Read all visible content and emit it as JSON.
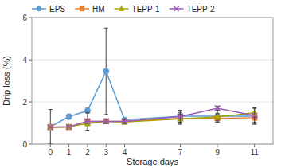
{
  "chart_data": {
    "type": "line",
    "xlabel": "Storage days",
    "ylabel": "Drip loss (%)",
    "x": [
      0,
      1,
      2,
      3,
      4,
      7,
      9,
      11
    ],
    "series": [
      {
        "name": "EPS",
        "color": "#5B9BD5",
        "marker": "circle",
        "values": [
          0.82,
          1.3,
          1.58,
          3.45,
          1.15,
          1.32,
          1.32,
          1.32
        ],
        "errors": [
          0.82,
          0.12,
          0.12,
          2.05,
          0.05,
          0.28,
          0.28,
          0.38
        ]
      },
      {
        "name": "HM",
        "color": "#ED7D31",
        "marker": "square",
        "values": [
          0.8,
          0.8,
          1.08,
          1.08,
          1.08,
          1.22,
          1.22,
          1.25
        ],
        "errors": [
          0.0,
          0.0,
          0.42,
          0.0,
          0.1,
          0.28,
          0.18,
          0.22
        ]
      },
      {
        "name": "TEPP-1",
        "color": "#A5A500",
        "marker": "triangle",
        "values": [
          0.8,
          0.82,
          0.98,
          1.08,
          1.05,
          1.2,
          1.28,
          1.48
        ],
        "errors": [
          0.0,
          0.0,
          0.1,
          0.1,
          0.1,
          0.22,
          0.18,
          0.22
        ]
      },
      {
        "name": "TEPP-2",
        "color": "#9B59B6",
        "marker": "x",
        "values": [
          0.8,
          0.82,
          1.08,
          1.08,
          1.08,
          1.3,
          1.7,
          1.35
        ],
        "errors": [
          0.0,
          0.0,
          0.1,
          0.1,
          0.1,
          0.28,
          0.1,
          0.38
        ]
      }
    ],
    "xlim": [
      -1,
      12
    ],
    "xticks": [
      0,
      1,
      2,
      3,
      4,
      7,
      9,
      11
    ],
    "ylim": [
      0,
      6
    ],
    "yticks": [
      0,
      2,
      4,
      6
    ],
    "grid": true,
    "legend": "upper left"
  }
}
